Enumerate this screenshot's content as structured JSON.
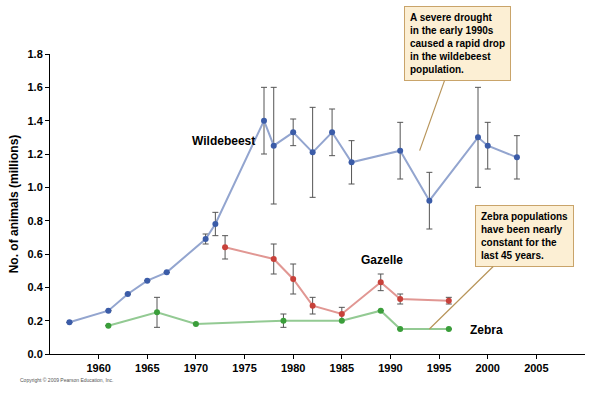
{
  "chart_data": {
    "type": "line",
    "y_label": "No. of animals (millions)",
    "xlim": [
      1955,
      2010
    ],
    "xticks": [
      1960,
      1965,
      1970,
      1975,
      1980,
      1985,
      1990,
      1995,
      2000,
      2005
    ],
    "ylim": [
      0,
      1.8
    ],
    "yticks": [
      {
        "value": 0,
        "label": "0.0"
      },
      0.2,
      0.4,
      0.6,
      0.8,
      {
        "value": 1,
        "label": "1.0"
      },
      1.2,
      1.4,
      1.6,
      1.8
    ],
    "grid": false,
    "marker": "circle",
    "series": [
      {
        "name": "Wildebeest",
        "color": "#3b5ca8",
        "x": [
          1957,
          1961,
          1963,
          1965,
          1967,
          1971,
          1972,
          1977,
          1978,
          1980,
          1982,
          1984,
          1986,
          1991,
          1994,
          1999,
          2000,
          2003
        ],
        "values": [
          0.19,
          0.26,
          0.36,
          0.44,
          0.49,
          0.69,
          0.78,
          1.4,
          1.25,
          1.33,
          1.21,
          1.33,
          1.15,
          1.22,
          0.92,
          1.3,
          1.25,
          1.18
        ],
        "error": [
          null,
          null,
          null,
          null,
          null,
          0.03,
          0.07,
          0.2,
          0.35,
          0.08,
          0.27,
          0.14,
          0.13,
          0.17,
          0.17,
          0.3,
          0.14,
          0.13
        ]
      },
      {
        "name": "Gazelle",
        "color": "#c8413a",
        "x": [
          1973,
          1978,
          1980,
          1982,
          1985,
          1989,
          1991,
          1996
        ],
        "values": [
          0.64,
          0.57,
          0.45,
          0.29,
          0.24,
          0.43,
          0.33,
          0.32
        ],
        "error": [
          0.07,
          0.09,
          0.09,
          0.05,
          0.04,
          0.05,
          0.03,
          0.02
        ]
      },
      {
        "name": "Zebra",
        "color": "#3a9e3a",
        "x": [
          1961,
          1966,
          1970,
          1979,
          1985,
          1989,
          1991,
          1996
        ],
        "values": [
          0.17,
          0.25,
          0.18,
          0.2,
          0.2,
          0.26,
          0.15,
          0.15
        ],
        "error": [
          null,
          0.09,
          null,
          0.04,
          null,
          null,
          null,
          null
        ]
      }
    ],
    "annotations": [
      {
        "lines": [
          "A severe drought",
          "in the early 1990s",
          "caused a rapid drop",
          "in the wildebeest",
          "population."
        ],
        "x": 1993,
        "y": 1.22
      },
      {
        "lines": [
          "Zebra populations",
          "have been nearly",
          "constant for the",
          "last 45 years."
        ],
        "x": 1994,
        "y": 0.15
      }
    ],
    "note": "Copyright © 2009 Pearson Education, Inc."
  }
}
